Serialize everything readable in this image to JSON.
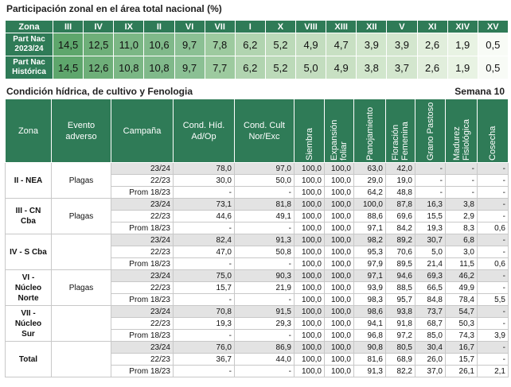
{
  "summary": {
    "title": "Participación zonal en el área total nacional (%)",
    "header": [
      "Zona",
      "III",
      "IV",
      "IX",
      "II",
      "VI",
      "VII",
      "I",
      "X",
      "VIII",
      "XIII",
      "XII",
      "V",
      "XI",
      "XIV",
      "XV"
    ],
    "rows": [
      {
        "label": "Part Nac 2023/24",
        "values": [
          "14,5",
          "12,5",
          "11,0",
          "10,6",
          "9,7",
          "7,8",
          "6,2",
          "5,2",
          "4,9",
          "4,7",
          "3,9",
          "3,9",
          "2,6",
          "1,9",
          "0,5"
        ]
      },
      {
        "label": "Part Nac Histórica",
        "values": [
          "14,5",
          "12,6",
          "10,8",
          "10,8",
          "9,7",
          "7,7",
          "6,2",
          "5,2",
          "5,0",
          "4,9",
          "3,8",
          "3,7",
          "2,6",
          "1,9",
          "0,5"
        ]
      }
    ]
  },
  "condition": {
    "title": "Condición hídrica, de cultivo y Fenologia",
    "week": "Semana 10",
    "headers": [
      "Zona",
      "Evento adverso",
      "Campaña",
      "Cond. Híd. Ad/Op",
      "Cond. Cult Nor/Exc",
      "Siembra",
      "Expansión foliar",
      "Panojamiento",
      "Floración Femenina",
      "Grano Pastoso",
      "Madurez Fisiológica",
      "Cosecha"
    ],
    "groups": [
      {
        "zone": "II - NEA",
        "event": "Plagas",
        "rows": [
          {
            "campaign": "23/24",
            "values": [
              "78,0",
              "97,0",
              "100,0",
              "100,0",
              "63,0",
              "42,0",
              "-",
              "-",
              "-"
            ]
          },
          {
            "campaign": "22/23",
            "values": [
              "30,0",
              "50,0",
              "100,0",
              "100,0",
              "29,0",
              "19,0",
              "-",
              "-",
              "-"
            ]
          },
          {
            "campaign": "Prom 18/23",
            "values": [
              "-",
              "-",
              "100,0",
              "100,0",
              "64,2",
              "48,8",
              "-",
              "-",
              "-"
            ]
          }
        ]
      },
      {
        "zone": "III - CN Cba",
        "event": "Plagas",
        "rows": [
          {
            "campaign": "23/24",
            "values": [
              "73,1",
              "81,8",
              "100,0",
              "100,0",
              "100,0",
              "87,8",
              "16,3",
              "3,8",
              "-"
            ]
          },
          {
            "campaign": "22/23",
            "values": [
              "44,6",
              "49,1",
              "100,0",
              "100,0",
              "88,6",
              "69,6",
              "15,5",
              "2,9",
              "-"
            ]
          },
          {
            "campaign": "Prom 18/23",
            "values": [
              "-",
              "-",
              "100,0",
              "100,0",
              "97,1",
              "84,2",
              "19,3",
              "8,3",
              "0,6"
            ]
          }
        ]
      },
      {
        "zone": "IV - S Cba",
        "rows": [
          {
            "campaign": "23/24",
            "values": [
              "82,4",
              "91,3",
              "100,0",
              "100,0",
              "98,2",
              "89,2",
              "30,7",
              "6,8",
              "-"
            ]
          },
          {
            "campaign": "22/23",
            "values": [
              "47,0",
              "50,8",
              "100,0",
              "100,0",
              "95,3",
              "70,6",
              "5,0",
              "3,0",
              "-"
            ]
          },
          {
            "campaign": "Prom 18/23",
            "values": [
              "-",
              "-",
              "100,0",
              "100,0",
              "97,9",
              "89,5",
              "21,4",
              "11,5",
              "0,6"
            ]
          }
        ]
      },
      {
        "zone": "VI - Núcleo Norte",
        "event": "Plagas",
        "rows": [
          {
            "campaign": "23/24",
            "values": [
              "75,0",
              "90,3",
              "100,0",
              "100,0",
              "97,1",
              "94,6",
              "69,3",
              "46,2",
              "-"
            ]
          },
          {
            "campaign": "22/23",
            "values": [
              "15,7",
              "21,9",
              "100,0",
              "100,0",
              "93,9",
              "88,5",
              "66,5",
              "49,9",
              "-"
            ]
          },
          {
            "campaign": "Prom 18/23",
            "values": [
              "-",
              "-",
              "100,0",
              "100,0",
              "98,3",
              "95,7",
              "84,8",
              "78,4",
              "5,5"
            ]
          }
        ]
      },
      {
        "zone": "VII - Núcleo Sur",
        "rows": [
          {
            "campaign": "23/24",
            "values": [
              "70,8",
              "91,5",
              "100,0",
              "100,0",
              "98,6",
              "93,8",
              "73,7",
              "54,7",
              "-"
            ]
          },
          {
            "campaign": "22/23",
            "values": [
              "19,3",
              "29,3",
              "100,0",
              "100,0",
              "94,1",
              "91,8",
              "68,7",
              "50,3",
              "-"
            ]
          },
          {
            "campaign": "Prom 18/23",
            "values": [
              "-",
              "-",
              "100,0",
              "100,0",
              "96,8",
              "97,2",
              "85,0",
              "74,3",
              "3,9"
            ]
          }
        ]
      },
      {
        "zone": "Total",
        "rows": [
          {
            "campaign": "23/24",
            "values": [
              "76,0",
              "86,9",
              "100,0",
              "100,0",
              "90,8",
              "80,5",
              "30,4",
              "16,7",
              "-"
            ]
          },
          {
            "campaign": "22/23",
            "values": [
              "36,7",
              "44,0",
              "100,0",
              "100,0",
              "81,6",
              "68,9",
              "26,0",
              "15,7",
              "-"
            ]
          },
          {
            "campaign": "Prom 18/23",
            "values": [
              "-",
              "-",
              "100,0",
              "100,0",
              "91,3",
              "82,2",
              "37,0",
              "26,1",
              "2,1"
            ]
          }
        ]
      }
    ]
  }
}
